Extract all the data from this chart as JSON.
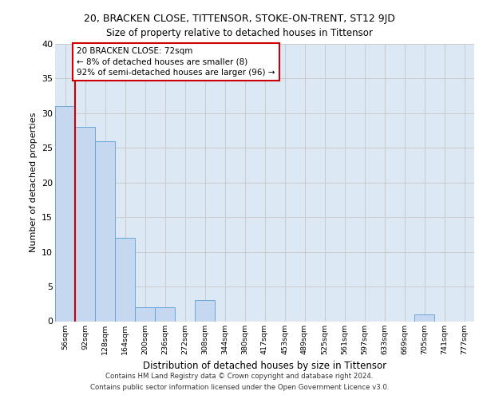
{
  "title_main": "20, BRACKEN CLOSE, TITTENSOR, STOKE-ON-TRENT, ST12 9JD",
  "title_sub": "Size of property relative to detached houses in Tittensor",
  "xlabel": "Distribution of detached houses by size in Tittensor",
  "ylabel": "Number of detached properties",
  "categories": [
    "56sqm",
    "92sqm",
    "128sqm",
    "164sqm",
    "200sqm",
    "236sqm",
    "272sqm",
    "308sqm",
    "344sqm",
    "380sqm",
    "417sqm",
    "453sqm",
    "489sqm",
    "525sqm",
    "561sqm",
    "597sqm",
    "633sqm",
    "669sqm",
    "705sqm",
    "741sqm",
    "777sqm"
  ],
  "values": [
    31,
    28,
    26,
    12,
    2,
    2,
    0,
    3,
    0,
    0,
    0,
    0,
    0,
    0,
    0,
    0,
    0,
    0,
    1,
    0,
    0
  ],
  "bar_color": "#c5d8f0",
  "bar_edge_color": "#5a9fd4",
  "annotation_text": "20 BRACKEN CLOSE: 72sqm\n← 8% of detached houses are smaller (8)\n92% of semi-detached houses are larger (96) →",
  "annotation_box_color": "#ffffff",
  "annotation_box_edge_color": "#cc0000",
  "vline_color": "#cc0000",
  "ylim": [
    0,
    40
  ],
  "yticks": [
    0,
    5,
    10,
    15,
    20,
    25,
    30,
    35,
    40
  ],
  "grid_color": "#cccccc",
  "bg_color": "#dce9f5",
  "footer_line1": "Contains HM Land Registry data © Crown copyright and database right 2024.",
  "footer_line2": "Contains public sector information licensed under the Open Government Licence v3.0."
}
